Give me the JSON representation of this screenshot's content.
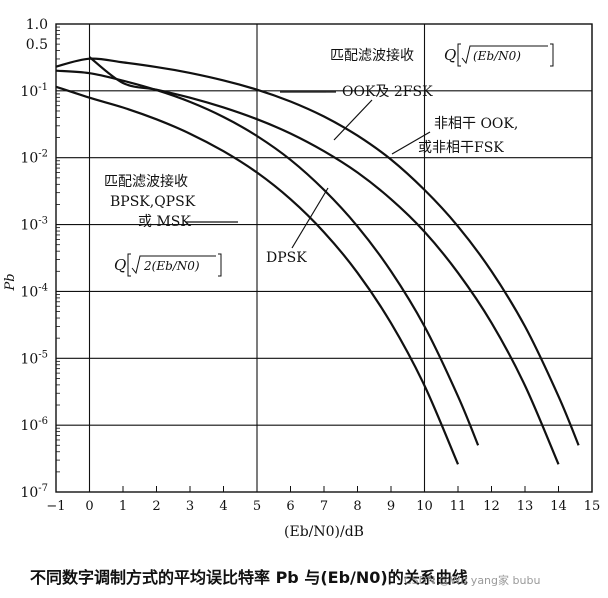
{
  "chart_data": {
    "type": "line",
    "x_scale": "linear",
    "y_scale": "log",
    "xlim": [
      -1,
      15
    ],
    "ylim": [
      1e-07,
      1.0
    ],
    "grid": true,
    "xlabel": "(Eb/N0)/dB",
    "ylabel": "Pb",
    "x_ticks": [
      -1,
      0,
      1,
      2,
      3,
      4,
      5,
      6,
      7,
      8,
      9,
      10,
      11,
      12,
      13,
      14,
      15
    ],
    "y_ticks": [
      {
        "value": 1.0,
        "label": "1.0"
      },
      {
        "value": 0.5,
        "label": "0.5"
      },
      {
        "value": 0.1,
        "label": "10^-1"
      },
      {
        "value": 0.01,
        "label": "10^-2"
      },
      {
        "value": 0.001,
        "label": "10^-3"
      },
      {
        "value": 0.0001,
        "label": "10^-4"
      },
      {
        "value": 1e-05,
        "label": "10^-5"
      },
      {
        "value": 1e-06,
        "label": "10^-6"
      },
      {
        "value": 1e-07,
        "label": "10^-7"
      }
    ],
    "series": [
      {
        "name": "BPSK,QPSK 或 MSK",
        "x": [
          -1,
          0,
          1,
          2,
          3,
          4,
          5,
          6,
          7,
          8,
          9,
          10,
          11
        ],
        "y": [
          0.115,
          0.079,
          0.0563,
          0.0375,
          0.0229,
          0.0125,
          0.006,
          0.0024,
          0.00077,
          0.00019,
          3.36e-05,
          3.9e-06,
          2.6e-07
        ]
      },
      {
        "name": "DPSK",
        "x": [
          -1,
          0,
          1,
          2,
          3,
          4,
          5,
          6,
          7,
          8,
          9,
          10,
          11,
          11.6
        ],
        "y": [
          0.2,
          0.1839,
          0.142,
          0.1028,
          0.0683,
          0.0407,
          0.0211,
          0.0093,
          0.0033,
          0.00094,
          0.0002,
          3e-05,
          2.7e-06,
          5e-07
        ]
      },
      {
        "name": "OOK 及 2FSK",
        "x": [
          0,
          1,
          2,
          3,
          4,
          5,
          6,
          7,
          8,
          9,
          10,
          11,
          12,
          13,
          14
        ],
        "y": [
          0.32,
          0.1312,
          0.104,
          0.0789,
          0.0565,
          0.0377,
          0.023,
          0.0125,
          0.006,
          0.0024,
          0.00078,
          0.00019,
          3.4e-05,
          3.9e-06,
          2.6e-07
        ]
      },
      {
        "name": "非相干 OOK，或非相干 FSK",
        "x": [
          -1,
          0,
          1,
          2,
          3,
          4,
          5,
          6,
          7,
          8,
          9,
          10,
          11,
          12,
          13,
          14,
          14.6
        ],
        "y": [
          0.23,
          0.303,
          0.2666,
          0.2269,
          0.1853,
          0.1436,
          0.1041,
          0.0692,
          0.0413,
          0.0214,
          0.0094,
          0.0033,
          0.00094,
          0.0002,
          3e-05,
          2.7e-06,
          5e-07
        ]
      }
    ],
    "annotations": {
      "matched_bpsk_title": "匹配滤波接收",
      "matched_bpsk_line1": "BPSK,QPSK",
      "matched_bpsk_line2": "或 MSK",
      "formula_bpsk_q": "Q",
      "formula_bpsk_arg": "2(Eb/N0)",
      "dpsk": "DPSK",
      "matched_ook_title": "匹配滤波接收",
      "formula_ook_q": "Q",
      "formula_ook_arg": "(Eb/N0)",
      "ook_2fsk": "OOK及 2FSK",
      "noncoherent_line1": "非相干 OOK,",
      "noncoherent_line2": "或非相干FSK"
    },
    "caption": "不同数字调制方式的平均误比特率 Pb 与(Eb/N0)的关系曲线",
    "watermark": "CSDN @Wu yang家 bubu"
  }
}
